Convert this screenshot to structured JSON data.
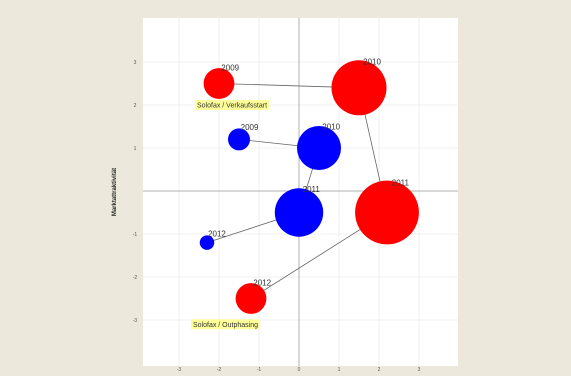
{
  "chart_data": {
    "type": "scatter",
    "subtype": "bubble",
    "title": "",
    "xlabel": "",
    "ylabel": "Marktattraktivität",
    "xlim": [
      -3.8,
      3.8
    ],
    "ylim": [
      -4.1,
      4.1
    ],
    "x_ticks": [
      -3,
      -2,
      -1,
      0,
      1,
      2,
      3
    ],
    "y_ticks": [
      -3,
      -2,
      -1,
      1,
      2,
      3
    ],
    "grid": true,
    "legend": "none",
    "series": [
      {
        "color": "#ff0000",
        "points": [
          {
            "label": "2009",
            "x": -2.0,
            "y": 2.5,
            "size": 0.7
          },
          {
            "label": "2010",
            "x": 1.5,
            "y": 2.4,
            "size": 1.25
          },
          {
            "label": "2011",
            "x": 2.2,
            "y": -0.5,
            "size": 1.45
          },
          {
            "label": "2012",
            "x": -1.2,
            "y": -2.5,
            "size": 0.7
          }
        ]
      },
      {
        "color": "#0000ff",
        "points": [
          {
            "label": "2009",
            "x": -1.5,
            "y": 1.2,
            "size": 0.5
          },
          {
            "label": "2010",
            "x": 0.5,
            "y": 1.0,
            "size": 1.0
          },
          {
            "label": "2011",
            "x": 0.0,
            "y": -0.5,
            "size": 1.1
          },
          {
            "label": "2012",
            "x": -2.3,
            "y": -1.2,
            "size": 0.33
          }
        ]
      }
    ],
    "annotations": [
      {
        "text": "Solofax / Verkaufsstart",
        "x": -2.6,
        "y": 2.0
      },
      {
        "text": "Solofax / Outphasing",
        "x": -2.7,
        "y": -3.1
      }
    ],
    "colors": {
      "background": "#ece9dc",
      "plot_background": "#ffffff",
      "grid": "#e4e4e4",
      "axis": "#b0b0b0",
      "connector": "#666666",
      "annotation_background": "#ffff99"
    }
  }
}
